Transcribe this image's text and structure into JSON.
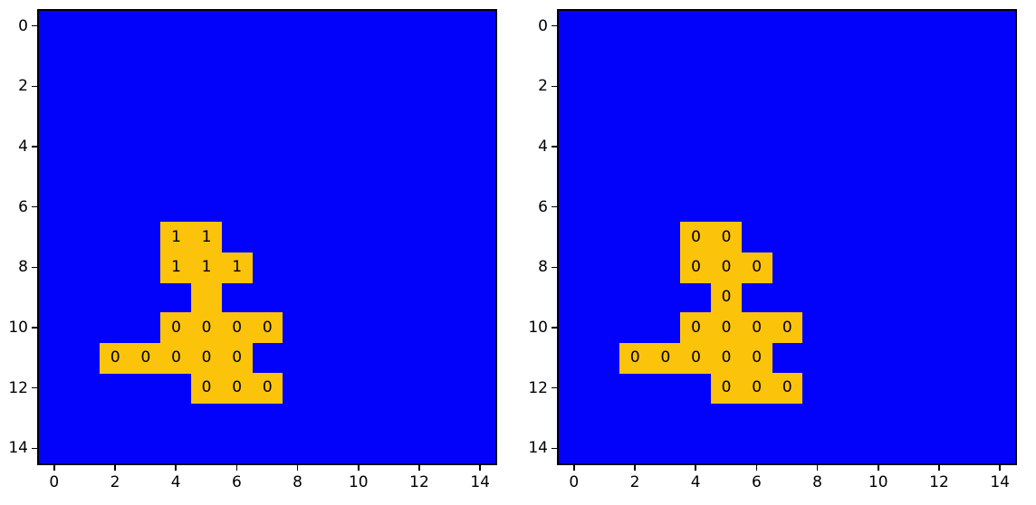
{
  "figure": {
    "background": "#ffffff",
    "palette": {
      "background_cell": "#0202fa",
      "shape_cell": "#fcc30b",
      "cell_text": "#000000",
      "axis": "#000000"
    }
  },
  "chart_data": [
    {
      "type": "heatmap",
      "title": "",
      "xlabel": "",
      "ylabel": "",
      "grid_rows": 15,
      "grid_cols": 15,
      "xlim": [
        -0.5,
        14.5
      ],
      "ylim": [
        14.5,
        -0.5
      ],
      "x_tick_values": [
        0,
        2,
        4,
        6,
        8,
        10,
        12,
        14
      ],
      "x_tick_labels": [
        "0",
        "2",
        "4",
        "6",
        "8",
        "10",
        "12",
        "14"
      ],
      "y_tick_values": [
        0,
        2,
        4,
        6,
        8,
        10,
        12,
        14
      ],
      "y_tick_labels": [
        "0",
        "2",
        "4",
        "6",
        "8",
        "10",
        "12",
        "14"
      ],
      "background_value": "blue",
      "shape_value": "gold",
      "cells": [
        {
          "row": 7,
          "col": 4,
          "label": "1"
        },
        {
          "row": 7,
          "col": 5,
          "label": "1"
        },
        {
          "row": 8,
          "col": 4,
          "label": "1"
        },
        {
          "row": 8,
          "col": 5,
          "label": "1"
        },
        {
          "row": 8,
          "col": 6,
          "label": "1"
        },
        {
          "row": 9,
          "col": 5,
          "label": ""
        },
        {
          "row": 10,
          "col": 4,
          "label": "0"
        },
        {
          "row": 10,
          "col": 5,
          "label": "0"
        },
        {
          "row": 10,
          "col": 6,
          "label": "0"
        },
        {
          "row": 10,
          "col": 7,
          "label": "0"
        },
        {
          "row": 11,
          "col": 2,
          "label": "0"
        },
        {
          "row": 11,
          "col": 3,
          "label": "0"
        },
        {
          "row": 11,
          "col": 4,
          "label": "0"
        },
        {
          "row": 11,
          "col": 5,
          "label": "0"
        },
        {
          "row": 11,
          "col": 6,
          "label": "0"
        },
        {
          "row": 12,
          "col": 5,
          "label": "0"
        },
        {
          "row": 12,
          "col": 6,
          "label": "0"
        },
        {
          "row": 12,
          "col": 7,
          "label": "0"
        }
      ]
    },
    {
      "type": "heatmap",
      "title": "",
      "xlabel": "",
      "ylabel": "",
      "grid_rows": 15,
      "grid_cols": 15,
      "xlim": [
        -0.5,
        14.5
      ],
      "ylim": [
        14.5,
        -0.5
      ],
      "x_tick_values": [
        0,
        2,
        4,
        6,
        8,
        10,
        12,
        14
      ],
      "x_tick_labels": [
        "0",
        "2",
        "4",
        "6",
        "8",
        "10",
        "12",
        "14"
      ],
      "y_tick_values": [
        0,
        2,
        4,
        6,
        8,
        10,
        12,
        14
      ],
      "y_tick_labels": [
        "0",
        "2",
        "4",
        "6",
        "8",
        "10",
        "12",
        "14"
      ],
      "background_value": "blue",
      "shape_value": "gold",
      "cells": [
        {
          "row": 7,
          "col": 4,
          "label": "0"
        },
        {
          "row": 7,
          "col": 5,
          "label": "0"
        },
        {
          "row": 8,
          "col": 4,
          "label": "0"
        },
        {
          "row": 8,
          "col": 5,
          "label": "0"
        },
        {
          "row": 8,
          "col": 6,
          "label": "0"
        },
        {
          "row": 9,
          "col": 5,
          "label": "0"
        },
        {
          "row": 10,
          "col": 4,
          "label": "0"
        },
        {
          "row": 10,
          "col": 5,
          "label": "0"
        },
        {
          "row": 10,
          "col": 6,
          "label": "0"
        },
        {
          "row": 10,
          "col": 7,
          "label": "0"
        },
        {
          "row": 11,
          "col": 2,
          "label": "0"
        },
        {
          "row": 11,
          "col": 3,
          "label": "0"
        },
        {
          "row": 11,
          "col": 4,
          "label": "0"
        },
        {
          "row": 11,
          "col": 5,
          "label": "0"
        },
        {
          "row": 11,
          "col": 6,
          "label": "0"
        },
        {
          "row": 12,
          "col": 5,
          "label": "0"
        },
        {
          "row": 12,
          "col": 6,
          "label": "0"
        },
        {
          "row": 12,
          "col": 7,
          "label": "0"
        }
      ]
    }
  ]
}
